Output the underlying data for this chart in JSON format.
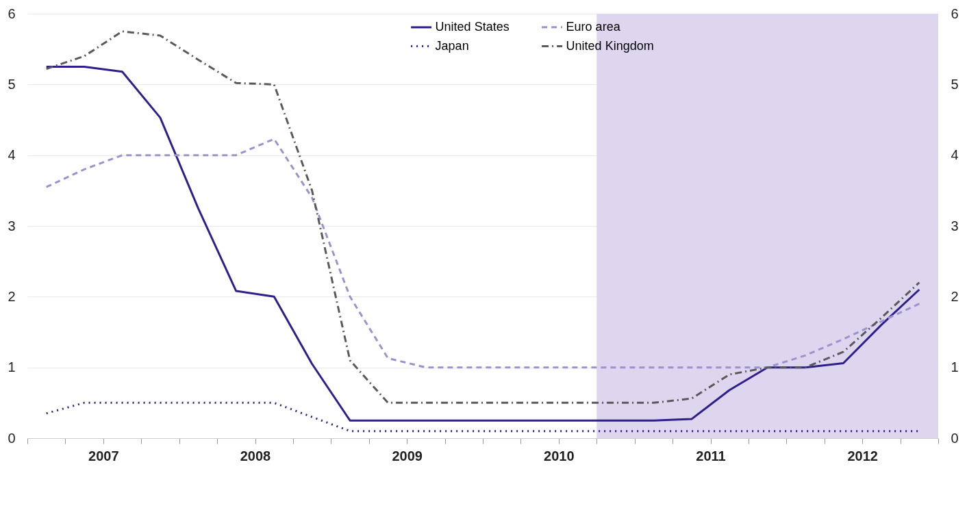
{
  "chart_data": {
    "type": "line",
    "x": [
      2007.125,
      2007.375,
      2007.625,
      2007.875,
      2008.125,
      2008.375,
      2008.625,
      2008.875,
      2009.125,
      2009.375,
      2009.625,
      2009.875,
      2010.125,
      2010.375,
      2010.625,
      2010.875,
      2011.125,
      2011.375,
      2011.625,
      2011.875,
      2012.125,
      2012.375,
      2012.625,
      2012.875
    ],
    "series": [
      {
        "name": "United States",
        "color": "#2e1f8a",
        "line_style": "solid",
        "values": [
          5.25,
          5.25,
          5.18,
          4.53,
          3.25,
          2.08,
          2.0,
          1.05,
          0.25,
          0.25,
          0.25,
          0.25,
          0.25,
          0.25,
          0.25,
          0.25,
          0.25,
          0.27,
          0.68,
          1.0,
          1.0,
          1.06,
          1.6,
          2.1
        ]
      },
      {
        "name": "Japan",
        "color": "#2e1f8a",
        "line_style": "dotted",
        "values": [
          0.35,
          0.5,
          0.5,
          0.5,
          0.5,
          0.5,
          0.5,
          0.3,
          0.1,
          0.1,
          0.1,
          0.1,
          0.1,
          0.1,
          0.1,
          0.1,
          0.1,
          0.1,
          0.1,
          0.1,
          0.1,
          0.1,
          0.1,
          0.1
        ]
      },
      {
        "name": "Euro area",
        "color": "#9c93cc",
        "line_style": "dashed",
        "values": [
          3.55,
          3.8,
          4.0,
          4.0,
          4.0,
          4.0,
          4.23,
          3.4,
          2.0,
          1.13,
          1.0,
          1.0,
          1.0,
          1.0,
          1.0,
          1.0,
          1.0,
          1.0,
          1.0,
          1.0,
          1.17,
          1.4,
          1.65,
          1.9
        ]
      },
      {
        "name": "United Kingdom",
        "color": "#5a5a5a",
        "line_style": "dashdot",
        "values": [
          5.22,
          5.4,
          5.75,
          5.69,
          5.35,
          5.02,
          5.0,
          3.5,
          1.1,
          0.5,
          0.5,
          0.5,
          0.5,
          0.5,
          0.5,
          0.5,
          0.5,
          0.56,
          0.9,
          1.0,
          1.0,
          1.22,
          1.7,
          2.2
        ]
      }
    ],
    "xlim": [
      2007,
      2013
    ],
    "xticks": [
      {
        "value": 2007,
        "label": null
      },
      {
        "value": 2007.25,
        "label": null
      },
      {
        "value": 2007.5,
        "label": "2007"
      },
      {
        "value": 2007.75,
        "label": null
      },
      {
        "value": 2008,
        "label": null
      },
      {
        "value": 2008.25,
        "label": null
      },
      {
        "value": 2008.5,
        "label": "2008"
      },
      {
        "value": 2008.75,
        "label": null
      },
      {
        "value": 2009,
        "label": null
      },
      {
        "value": 2009.25,
        "label": null
      },
      {
        "value": 2009.5,
        "label": "2009"
      },
      {
        "value": 2009.75,
        "label": null
      },
      {
        "value": 2010,
        "label": null
      },
      {
        "value": 2010.25,
        "label": null
      },
      {
        "value": 2010.5,
        "label": "2010"
      },
      {
        "value": 2010.75,
        "label": null
      },
      {
        "value": 2011,
        "label": null
      },
      {
        "value": 2011.25,
        "label": null
      },
      {
        "value": 2011.5,
        "label": "2011"
      },
      {
        "value": 2011.75,
        "label": null
      },
      {
        "value": 2012,
        "label": null
      },
      {
        "value": 2012.25,
        "label": null
      },
      {
        "value": 2012.5,
        "label": "2012"
      },
      {
        "value": 2012.75,
        "label": null
      },
      {
        "value": 2013,
        "label": null
      }
    ],
    "ylim": [
      0,
      6
    ],
    "yticks": [
      0,
      1,
      2,
      3,
      4,
      5,
      6
    ],
    "y2lim": [
      0,
      6
    ],
    "y2ticks": [
      0,
      1,
      2,
      3,
      4,
      5,
      6
    ],
    "bands": [
      {
        "axis": "x",
        "from": 2010.75,
        "to": 2013,
        "color": "#ded6ee"
      }
    ],
    "grid": "y",
    "legend": "top"
  }
}
